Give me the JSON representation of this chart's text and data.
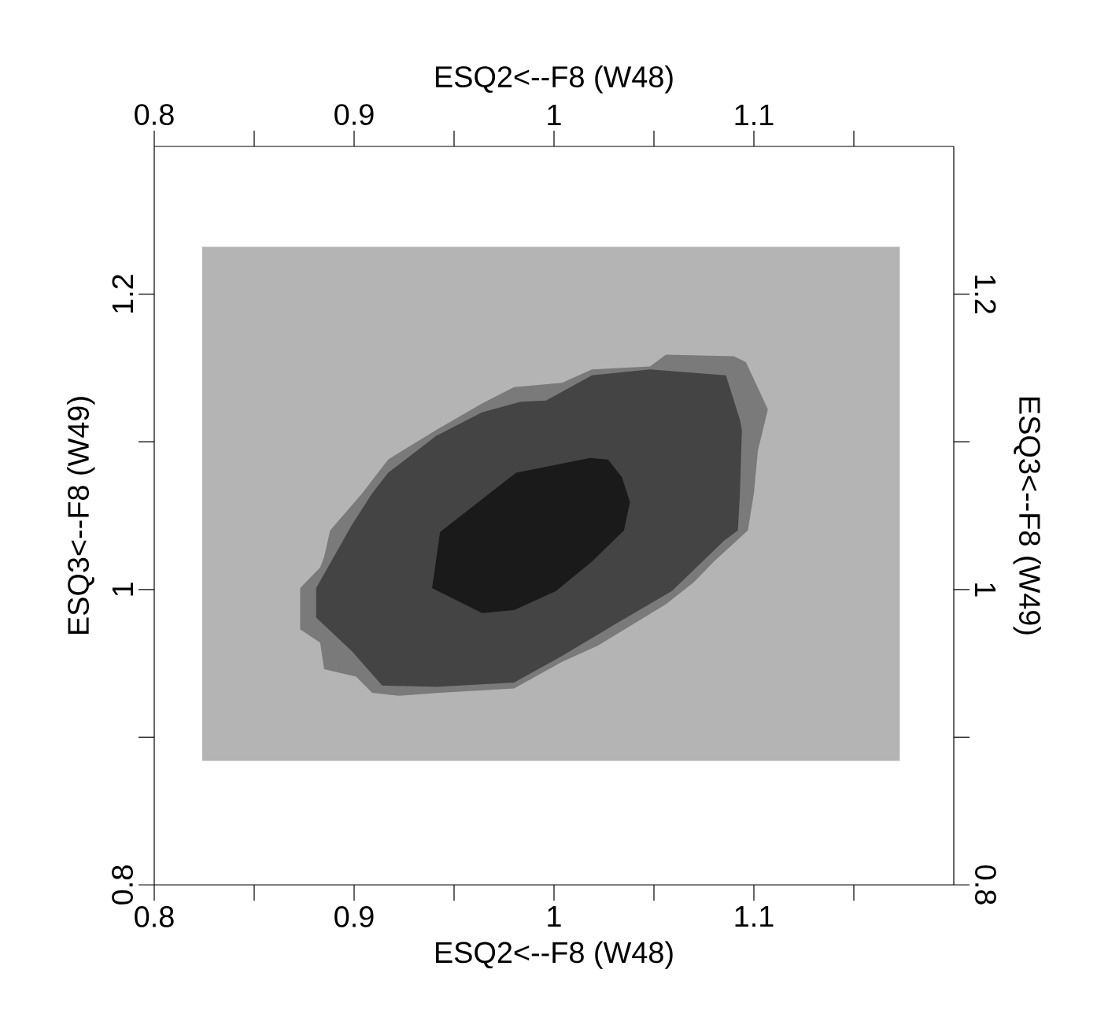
{
  "chart_data": {
    "type": "area",
    "xlabel": "ESQ2<--F8    (W48)",
    "ylabel": "ESQ3<--F8    (W49)",
    "x2label": "ESQ2<--F8    (W48)",
    "y2label": "ESQ3<--F8    (W49)",
    "xlim": [
      0.8,
      1.2
    ],
    "ylim": [
      0.8,
      1.3
    ],
    "x2lim": [
      0.8,
      1.2
    ],
    "y2lim": [
      0.8,
      1.3
    ],
    "xticks": [
      0.8,
      {
        "value": 0.85,
        "label": null
      },
      0.9,
      {
        "value": 0.95,
        "label": null
      },
      1,
      {
        "value": 1.05,
        "label": null
      },
      1.1,
      {
        "value": 1.15,
        "label": null
      }
    ],
    "x2ticks": [
      0.8,
      {
        "value": 0.85,
        "label": null
      },
      0.9,
      {
        "value": 0.95,
        "label": null
      },
      1,
      {
        "value": 1.05,
        "label": null
      },
      1.1,
      {
        "value": 1.15,
        "label": null
      }
    ],
    "yticks": [
      0.8,
      {
        "value": 0.9,
        "label": null
      },
      1,
      {
        "value": 1.1,
        "label": null
      },
      1.2
    ],
    "y2ticks": [
      0.8,
      {
        "value": 0.9,
        "label": null
      },
      1,
      {
        "value": 1.1,
        "label": null
      },
      1.2
    ],
    "series": [
      {
        "color": "#b4b4b4",
        "x": [
          0.824,
          1.173,
          1.173,
          0.824
        ],
        "values": [
          0.884,
          0.884,
          1.232,
          1.232
        ]
      },
      {
        "color": "#7a7a7a",
        "x": [
          0.873,
          0.873,
          0.883,
          0.885,
          0.901,
          0.909,
          0.922,
          0.943,
          0.98,
          1.004,
          1.022,
          1.056,
          1.07,
          1.08,
          1.097,
          1.1,
          1.102,
          1.107,
          1.096,
          1.09,
          1.056,
          1.048,
          1.019,
          1.004,
          0.98,
          0.964,
          0.941,
          0.917,
          0.904,
          0.888,
          0.885,
          0.883
        ],
        "values": [
          1.001,
          0.973,
          0.964,
          0.946,
          0.941,
          0.93,
          0.928,
          0.93,
          0.933,
          0.951,
          0.962,
          0.99,
          1.005,
          1.019,
          1.04,
          1.065,
          1.094,
          1.122,
          1.154,
          1.158,
          1.159,
          1.151,
          1.149,
          1.14,
          1.137,
          1.126,
          1.108,
          1.088,
          1.065,
          1.04,
          1.022,
          1.015
        ]
      },
      {
        "color": "#444444",
        "x": [
          0.881,
          0.881,
          0.899,
          0.914,
          0.941,
          0.98,
          1.004,
          1.03,
          1.059,
          1.085,
          1.092,
          1.093,
          1.094,
          1.093,
          1.086,
          1.048,
          1.019,
          0.996,
          0.983,
          0.964,
          0.941,
          0.917,
          0.909,
          0.899
        ],
        "values": [
          1.001,
          0.981,
          0.958,
          0.935,
          0.934,
          0.937,
          0.955,
          0.976,
          0.999,
          1.033,
          1.04,
          1.065,
          1.108,
          1.115,
          1.145,
          1.149,
          1.145,
          1.128,
          1.127,
          1.12,
          1.104,
          1.079,
          1.065,
          1.044
        ]
      },
      {
        "color": "#1a1a1a",
        "x": [
          0.939,
          0.964,
          0.98,
          1.001,
          1.019,
          1.035,
          1.038,
          1.034,
          1.027,
          1.018,
          0.981,
          0.943
        ],
        "values": [
          1.001,
          0.984,
          0.986,
          0.999,
          1.019,
          1.04,
          1.059,
          1.076,
          1.088,
          1.089,
          1.079,
          1.039
        ]
      }
    ]
  }
}
